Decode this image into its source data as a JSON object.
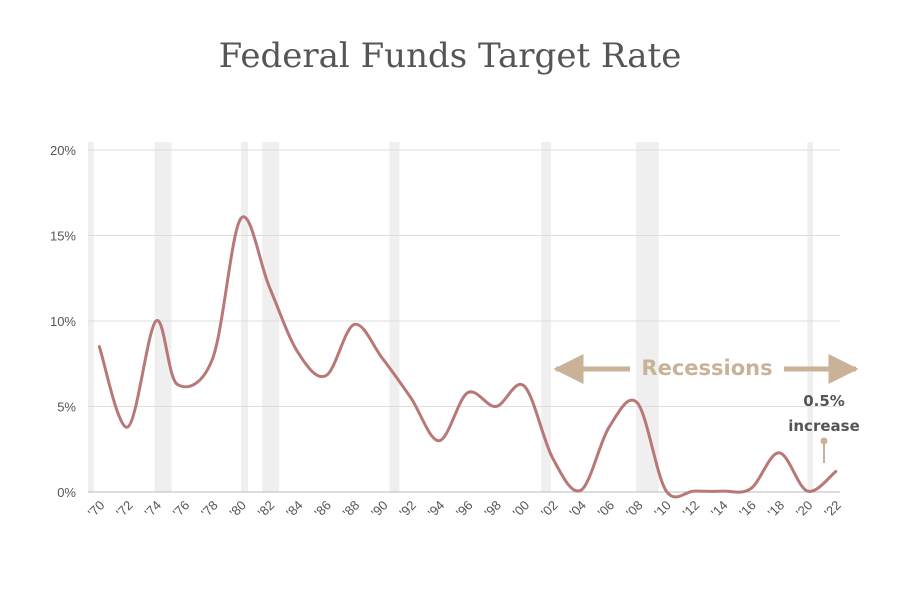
{
  "chart_data": {
    "type": "line",
    "title": "Federal Funds Target Rate",
    "xlabel": "",
    "ylabel": "",
    "ylim": [
      0,
      20
    ],
    "xlim": [
      1969.2,
      2022.3
    ],
    "y_ticks": [
      0,
      5,
      10,
      15,
      20
    ],
    "y_tick_labels": [
      "0%",
      "5%",
      "10%",
      "15%",
      "20%"
    ],
    "x_ticks": [
      1970,
      1972,
      1974,
      1976,
      1978,
      1980,
      1982,
      1984,
      1986,
      1988,
      1990,
      1992,
      1994,
      1996,
      1998,
      2000,
      2002,
      2004,
      2006,
      2008,
      2010,
      2012,
      2014,
      2016,
      2018,
      2020,
      2022
    ],
    "x_tick_labels": [
      "'70",
      "'72",
      "'74",
      "'76",
      "'78",
      "'80",
      "'82",
      "'84",
      "'86",
      "'88",
      "'90",
      "'92",
      "'94",
      "'96",
      "'98",
      "'00",
      "'02",
      "'04",
      "'06",
      "'08",
      "'10",
      "'12",
      "'14",
      "'16",
      "'18",
      "'20",
      "'22"
    ],
    "grid": "horizontal",
    "line_color": "#b97878",
    "recession_color": "#efefef",
    "series": [
      {
        "x": [
          1970,
          1972,
          1974,
          1975.5,
          1978,
          1980,
          1982,
          1984,
          1986,
          1988,
          1990,
          1992,
          1994,
          1996,
          1998,
          2000,
          2002,
          2004,
          2006,
          2008,
          2010,
          2012,
          2014,
          2016,
          2018,
          2020,
          2022
        ],
        "values": [
          8.5,
          3.8,
          10.0,
          6.3,
          7.8,
          16.0,
          12.0,
          8.2,
          6.8,
          9.8,
          7.8,
          5.5,
          3.0,
          5.8,
          5.0,
          6.2,
          2.0,
          0.1,
          3.8,
          5.2,
          0.1,
          0.05,
          0.05,
          0.2,
          2.3,
          0.05,
          1.2
        ]
      }
    ],
    "recessions": [
      [
        1969.2,
        1969.6
      ],
      [
        1973.9,
        1975.1
      ],
      [
        1980.0,
        1980.5
      ],
      [
        1981.5,
        1982.7
      ],
      [
        1990.5,
        1991.2
      ],
      [
        2001.2,
        2001.9
      ],
      [
        2007.9,
        2009.5
      ],
      [
        2020.0,
        2020.4
      ]
    ],
    "legend": {
      "label": "Recessions",
      "color": "#c9b297"
    },
    "annotation": {
      "line1": "0.5%",
      "line2": "increase"
    }
  }
}
